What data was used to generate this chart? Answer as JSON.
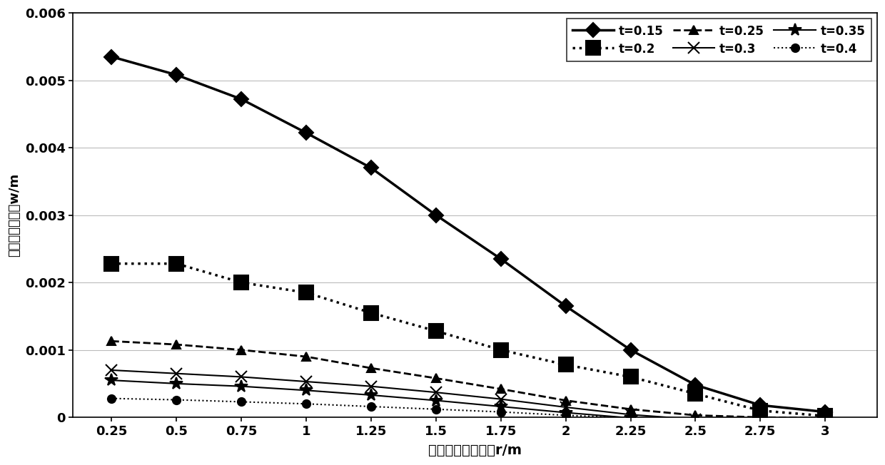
{
  "x": [
    0.25,
    0.5,
    0.75,
    1.0,
    1.25,
    1.5,
    1.75,
    2.0,
    2.25,
    2.5,
    2.75,
    3.0
  ],
  "series": {
    "t=0.15": [
      0.00535,
      0.00508,
      0.00472,
      0.00422,
      0.0037,
      0.003,
      0.00235,
      0.00165,
      0.001,
      0.00048,
      0.00018,
      8e-05
    ],
    "t=0.2": [
      0.00228,
      0.00228,
      0.002,
      0.00185,
      0.00155,
      0.00128,
      0.001,
      0.00078,
      0.0006,
      0.00035,
      0.0001,
      2e-05
    ],
    "t=0.25": [
      0.00113,
      0.00108,
      0.001,
      0.0009,
      0.00073,
      0.00058,
      0.00042,
      0.00025,
      0.00012,
      3e-05,
      0.0,
      -1e-05
    ],
    "t=0.3": [
      0.0007,
      0.00065,
      0.0006,
      0.00053,
      0.00046,
      0.00037,
      0.00027,
      0.00015,
      4e-05,
      -3e-05,
      -5e-05,
      -5e-05
    ],
    "t=0.35": [
      0.00055,
      0.0005,
      0.00046,
      0.0004,
      0.00033,
      0.00025,
      0.00016,
      7e-05,
      -1e-05,
      -7e-05,
      -9e-05,
      -9e-05
    ],
    "t=0.4": [
      0.00028,
      0.00026,
      0.00023,
      0.0002,
      0.00016,
      0.00012,
      8e-05,
      3e-05,
      -1e-05,
      -4e-05,
      -5e-05,
      -5e-05
    ]
  },
  "series_order": [
    "t=0.15",
    "t=0.2",
    "t=0.25",
    "t=0.3",
    "t=0.35",
    "t=0.4"
  ],
  "legend_order": [
    "t=0.15",
    "t=0.2",
    "t=0.25",
    "t=0.3",
    "t=0.35",
    "t=0.4"
  ],
  "styles": {
    "t=0.15": {
      "color": "black",
      "linestyle": "-",
      "linewidth": 2.5,
      "marker": "D",
      "markersize": 10,
      "markerfacecolor": "black",
      "dashes": []
    },
    "t=0.2": {
      "color": "black",
      "linestyle": ":",
      "linewidth": 2.5,
      "marker": "s",
      "markersize": 14,
      "markerfacecolor": "black",
      "dashes": []
    },
    "t=0.25": {
      "color": "black",
      "linestyle": "--",
      "linewidth": 2.0,
      "marker": "^",
      "markersize": 9,
      "markerfacecolor": "black",
      "dashes": [
        6,
        3
      ]
    },
    "t=0.3": {
      "color": "black",
      "linestyle": "-",
      "linewidth": 1.5,
      "marker": "x",
      "markersize": 11,
      "markerfacecolor": "black",
      "dashes": []
    },
    "t=0.35": {
      "color": "black",
      "linestyle": "-",
      "linewidth": 1.5,
      "marker": "*",
      "markersize": 13,
      "markerfacecolor": "black",
      "dashes": []
    },
    "t=0.4": {
      "color": "black",
      "linestyle": ":",
      "linewidth": 1.5,
      "marker": "o",
      "markersize": 8,
      "markerfacecolor": "black",
      "dashes": []
    }
  },
  "xlabel": "距离刀盘轴线距高r/m",
  "ylabel": "刀盘横向捆度值w/m",
  "xlim": [
    0.1,
    3.2
  ],
  "ylim": [
    0.0,
    0.006
  ],
  "yticks": [
    0.0,
    0.001,
    0.002,
    0.003,
    0.004,
    0.005,
    0.006
  ],
  "xticks": [
    0.25,
    0.5,
    0.75,
    1.0,
    1.25,
    1.5,
    1.75,
    2.0,
    2.25,
    2.5,
    2.75,
    3.0
  ],
  "background_color": "#ffffff",
  "grid_color": "#bbbbbb",
  "figure_width": 12.4,
  "figure_height": 6.52,
  "dpi": 100
}
